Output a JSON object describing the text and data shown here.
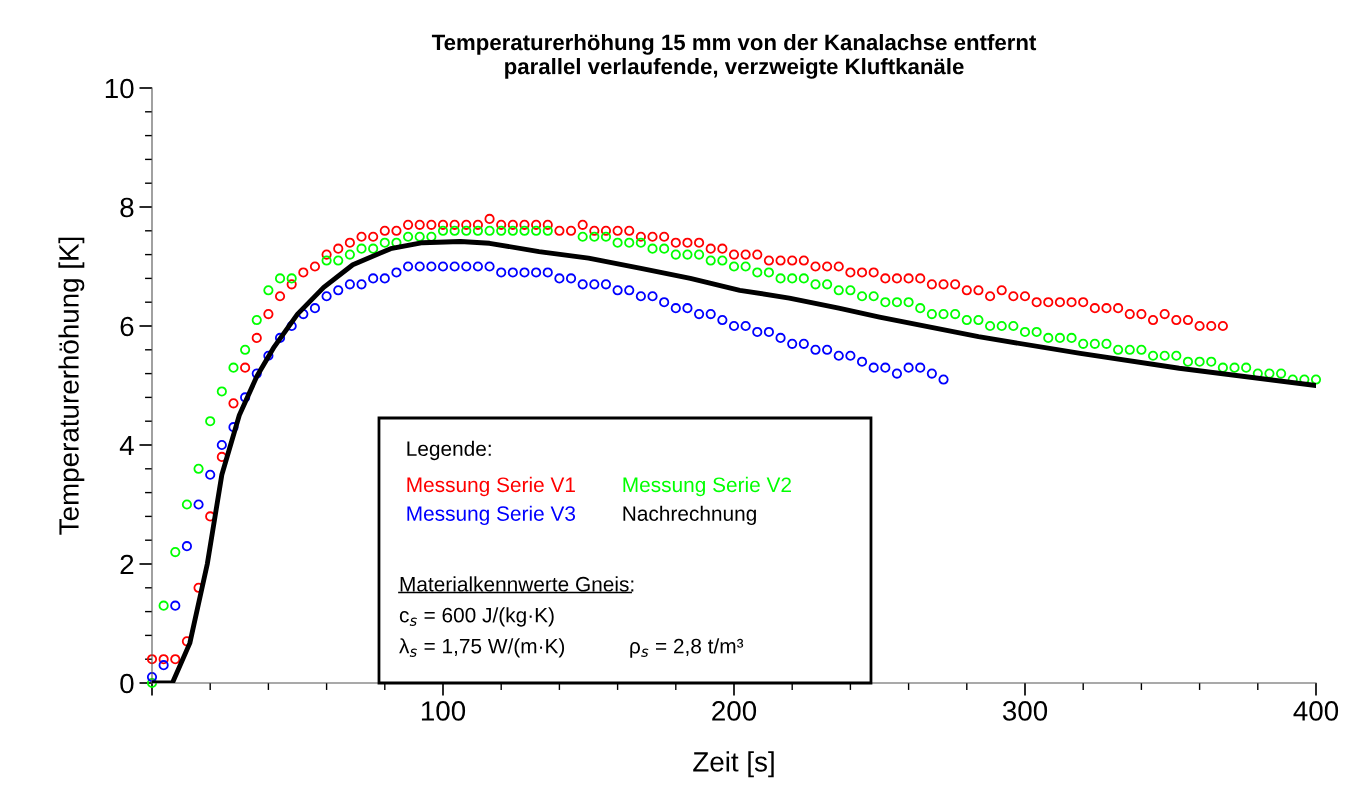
{
  "chart_data": {
    "type": "scatter",
    "title": "Temperaturerhöhung 15 mm von der Kanalachse entfernt\nparallel verlaufende, verzweigte Kluftkanäle",
    "xlabel": "Zeit [s]",
    "ylabel": "Temperaturerhöhung [K]",
    "legend_title": "Legende:",
    "xlim": [
      0,
      400
    ],
    "ylim": [
      0,
      10
    ],
    "xticks": [
      {
        "value": 0,
        "label": null
      },
      100,
      200,
      300,
      400
    ],
    "yticks": [
      0,
      2,
      4,
      6,
      8,
      10
    ],
    "grid": false,
    "legend": "bottom",
    "marker": "circle",
    "series": [
      {
        "name": "Messung Serie V1",
        "color": "#ff0000",
        "x": [
          0,
          4,
          8,
          12,
          16,
          20,
          24,
          28,
          32,
          36,
          40,
          44,
          48,
          52,
          56,
          60,
          64,
          68,
          72,
          76,
          80,
          84,
          88,
          92,
          96,
          100,
          104,
          108,
          112,
          116,
          120,
          124,
          128,
          132,
          136,
          140,
          144,
          148,
          152,
          156,
          160,
          164,
          168,
          172,
          176,
          180,
          184,
          188,
          192,
          196,
          200,
          204,
          208,
          212,
          216,
          220,
          224,
          228,
          232,
          236,
          240,
          244,
          248,
          252,
          256,
          260,
          264,
          268,
          272,
          276,
          280,
          284,
          288,
          292,
          296,
          300,
          304,
          308,
          312,
          316,
          320,
          324,
          328,
          332,
          336,
          340,
          344,
          348,
          352,
          356,
          360,
          364,
          368
        ],
        "values": [
          0.4,
          0.4,
          0.4,
          0.7,
          1.6,
          2.8,
          3.8,
          4.7,
          5.3,
          5.8,
          6.2,
          6.5,
          6.7,
          6.9,
          7.0,
          7.2,
          7.3,
          7.4,
          7.5,
          7.5,
          7.6,
          7.6,
          7.7,
          7.7,
          7.7,
          7.7,
          7.7,
          7.7,
          7.7,
          7.8,
          7.7,
          7.7,
          7.7,
          7.7,
          7.7,
          7.6,
          7.6,
          7.7,
          7.6,
          7.6,
          7.6,
          7.6,
          7.5,
          7.5,
          7.5,
          7.4,
          7.4,
          7.4,
          7.3,
          7.3,
          7.2,
          7.2,
          7.2,
          7.1,
          7.1,
          7.1,
          7.1,
          7.0,
          7.0,
          7.0,
          6.9,
          6.9,
          6.9,
          6.8,
          6.8,
          6.8,
          6.8,
          6.7,
          6.7,
          6.7,
          6.6,
          6.6,
          6.5,
          6.6,
          6.5,
          6.5,
          6.4,
          6.4,
          6.4,
          6.4,
          6.4,
          6.3,
          6.3,
          6.3,
          6.2,
          6.2,
          6.1,
          6.2,
          6.1,
          6.1,
          6.0,
          6.0,
          6.0
        ]
      },
      {
        "name": "Messung Serie V2",
        "color": "#00ff00",
        "x": [
          0,
          4,
          8,
          12,
          16,
          20,
          24,
          28,
          32,
          36,
          40,
          44,
          48,
          52,
          56,
          60,
          64,
          68,
          72,
          76,
          80,
          84,
          88,
          92,
          96,
          100,
          104,
          108,
          112,
          116,
          120,
          124,
          128,
          132,
          136,
          140,
          144,
          148,
          152,
          156,
          160,
          164,
          168,
          172,
          176,
          180,
          184,
          188,
          192,
          196,
          200,
          204,
          208,
          212,
          216,
          220,
          224,
          228,
          232,
          236,
          240,
          244,
          248,
          252,
          256,
          260,
          264,
          268,
          272,
          276,
          280,
          284,
          288,
          292,
          296,
          300,
          304,
          308,
          312,
          316,
          320,
          324,
          328,
          332,
          336,
          340,
          344,
          348,
          352,
          356,
          360,
          364,
          368,
          372,
          376,
          380,
          384,
          388,
          392,
          396,
          400
        ],
        "values": [
          0.0,
          1.3,
          2.2,
          3.0,
          3.6,
          4.4,
          4.9,
          5.3,
          5.6,
          6.1,
          6.6,
          6.8,
          6.8,
          null,
          null,
          7.1,
          7.1,
          7.2,
          7.3,
          7.3,
          7.4,
          7.4,
          7.5,
          7.5,
          7.5,
          7.6,
          7.6,
          7.6,
          7.6,
          7.6,
          7.6,
          7.6,
          7.6,
          7.6,
          7.6,
          null,
          null,
          7.5,
          7.5,
          7.5,
          7.4,
          7.4,
          7.4,
          7.3,
          7.3,
          7.2,
          7.2,
          7.2,
          7.1,
          7.1,
          7.0,
          7.0,
          6.9,
          6.9,
          6.8,
          6.8,
          6.8,
          6.7,
          6.7,
          6.6,
          6.6,
          6.5,
          6.5,
          6.4,
          6.4,
          6.4,
          6.3,
          6.2,
          6.2,
          6.2,
          6.1,
          6.1,
          6.0,
          6.0,
          6.0,
          5.9,
          5.9,
          5.8,
          5.8,
          5.8,
          5.7,
          5.7,
          5.7,
          5.6,
          5.6,
          5.6,
          5.5,
          5.5,
          5.5,
          5.4,
          5.4,
          5.4,
          5.3,
          5.3,
          5.3,
          5.2,
          5.2,
          5.2,
          5.1,
          5.1,
          5.1
        ]
      },
      {
        "name": "Messung Serie V3",
        "color": "#0000ff",
        "x": [
          0,
          4,
          8,
          12,
          16,
          20,
          24,
          28,
          32,
          36,
          40,
          44,
          48,
          52,
          56,
          60,
          64,
          68,
          72,
          76,
          80,
          84,
          88,
          92,
          96,
          100,
          104,
          108,
          112,
          116,
          120,
          124,
          128,
          132,
          136,
          140,
          144,
          148,
          152,
          156,
          160,
          164,
          168,
          172,
          176,
          180,
          184,
          188,
          192,
          196,
          200,
          204,
          208,
          212,
          216,
          220,
          224,
          228,
          232,
          236,
          240,
          244,
          248,
          252,
          256,
          260,
          264,
          268,
          272
        ],
        "values": [
          0.1,
          0.3,
          1.3,
          2.3,
          3.0,
          3.5,
          4.0,
          4.3,
          4.8,
          5.2,
          5.5,
          5.8,
          6.0,
          6.2,
          6.3,
          6.5,
          6.6,
          6.7,
          6.7,
          6.8,
          6.8,
          6.9,
          7.0,
          7.0,
          7.0,
          7.0,
          7.0,
          7.0,
          7.0,
          7.0,
          6.9,
          6.9,
          6.9,
          6.9,
          6.9,
          6.8,
          6.8,
          6.7,
          6.7,
          6.7,
          6.6,
          6.6,
          6.5,
          6.5,
          6.4,
          6.3,
          6.3,
          6.2,
          6.2,
          6.1,
          6.0,
          6.0,
          5.9,
          5.9,
          5.8,
          5.7,
          5.7,
          5.6,
          5.6,
          5.5,
          5.5,
          5.4,
          5.3,
          5.3,
          5.2,
          5.3,
          5.3,
          5.2,
          5.1
        ]
      },
      {
        "name": "Nachrechnung",
        "color": "#000000",
        "type": "line",
        "marker": "none",
        "x": [
          0,
          7,
          13,
          19,
          24,
          30,
          36,
          42,
          50,
          59,
          69,
          82,
          93,
          106,
          116,
          133,
          150,
          168,
          185,
          202,
          219,
          236,
          250,
          284,
          319,
          353,
          400
        ],
        "values": [
          0,
          0,
          0.67,
          2.0,
          3.5,
          4.5,
          5.15,
          5.65,
          6.2,
          6.65,
          7.03,
          7.3,
          7.4,
          7.42,
          7.39,
          7.25,
          7.14,
          6.97,
          6.8,
          6.6,
          6.47,
          6.3,
          6.15,
          5.82,
          5.54,
          5.29,
          5.0
        ]
      }
    ],
    "annotations": [
      "Materialkennwerte Gneis:",
      "c$_{s}$ = 600 J/(kg·K)",
      "λ$_{s}$ = 1,75 W/(m·K)",
      "ρ$_{s}$ = 2,8 t/m³"
    ]
  }
}
